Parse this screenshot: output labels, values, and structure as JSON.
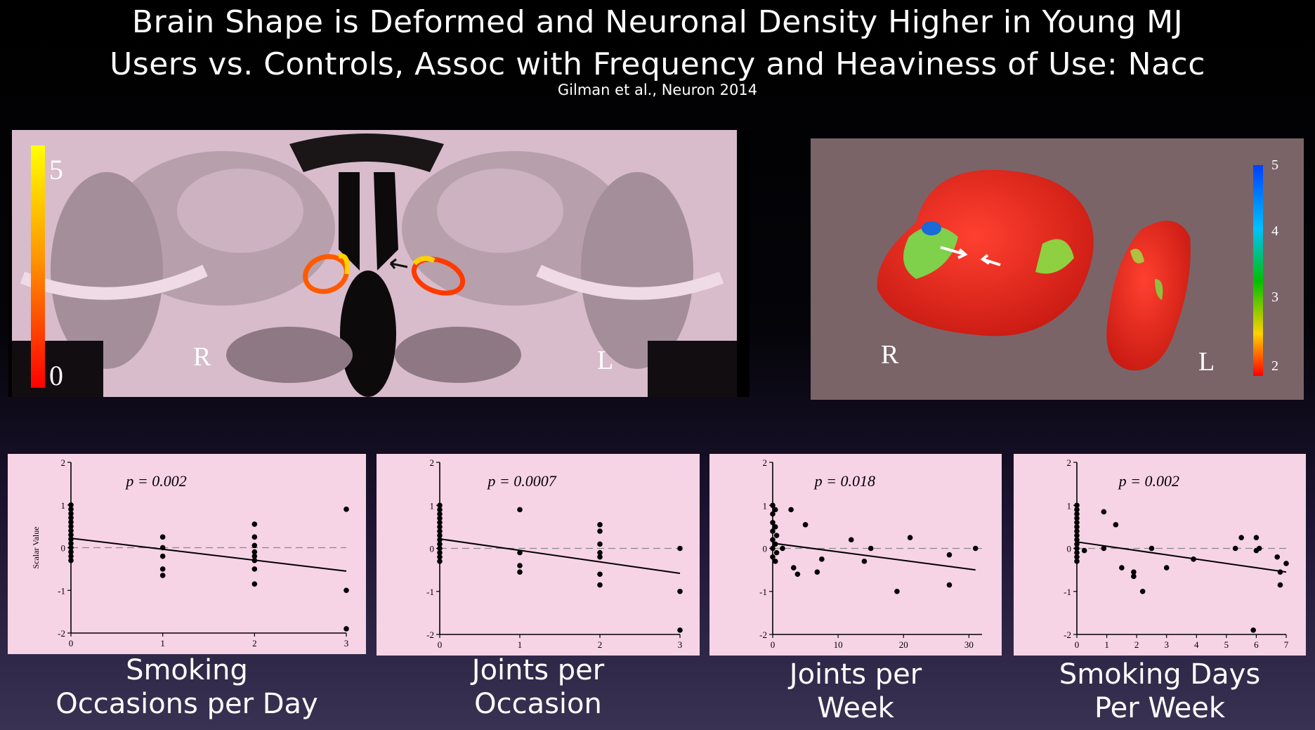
{
  "slide": {
    "title_line1": "Brain Shape is Deformed and Neuronal Density Higher in Young MJ",
    "title_line2": "Users vs. Controls, Assoc with Frequency and Heaviness of Use: Nacc",
    "citation": "Gilman et al., Neuron 2014"
  },
  "brain_left": {
    "colorbar_max": "5",
    "colorbar_min": "0",
    "label_right": "R",
    "label_left": "L",
    "colorbar_colors": [
      "#ffff00",
      "#ff8000",
      "#ff0000"
    ]
  },
  "brain_right": {
    "colorbar_ticks": [
      "5",
      "4",
      "3",
      "2"
    ],
    "label_right": "R",
    "label_left": "L",
    "surface_color": "#e8231c",
    "background": "#7a6468"
  },
  "chart_data": [
    {
      "type": "scatter",
      "caption_line1": "Smoking",
      "caption_line2": "Occasions per Day",
      "ylabel": "Scalar Value",
      "annotation": "p = 0.002",
      "xlim": [
        0,
        3
      ],
      "ylim": [
        -2,
        2
      ],
      "xticks": [
        "0",
        "1",
        "2",
        "3"
      ],
      "yticks": [
        "2",
        "1",
        "0",
        "-1",
        "-2"
      ],
      "points": [
        [
          0,
          1.0
        ],
        [
          0,
          0.9
        ],
        [
          0,
          0.8
        ],
        [
          0,
          0.7
        ],
        [
          0,
          0.6
        ],
        [
          0,
          0.5
        ],
        [
          0,
          0.4
        ],
        [
          0,
          0.3
        ],
        [
          0,
          0.2
        ],
        [
          0,
          0.1
        ],
        [
          0,
          0.0
        ],
        [
          0,
          -0.1
        ],
        [
          0,
          -0.2
        ],
        [
          0,
          -0.3
        ],
        [
          1,
          0.25
        ],
        [
          1,
          0.0
        ],
        [
          1,
          -0.2
        ],
        [
          1,
          -0.5
        ],
        [
          1,
          -0.65
        ],
        [
          2,
          0.55
        ],
        [
          2,
          0.25
        ],
        [
          2,
          0.05
        ],
        [
          2,
          -0.1
        ],
        [
          2,
          -0.2
        ],
        [
          2,
          -0.3
        ],
        [
          2,
          -0.5
        ],
        [
          2,
          -0.85
        ],
        [
          3,
          0.9
        ],
        [
          3,
          -1.0
        ],
        [
          3,
          -1.9
        ]
      ],
      "fit": [
        [
          0,
          0.22
        ],
        [
          3,
          -0.55
        ]
      ]
    },
    {
      "type": "scatter",
      "caption_line1": "Joints per",
      "caption_line2": "Occasion",
      "annotation": "p = 0.0007",
      "xlim": [
        0,
        3
      ],
      "ylim": [
        -2,
        2
      ],
      "xticks": [
        "0",
        "1",
        "2",
        "3"
      ],
      "yticks": [
        "2",
        "1",
        "0",
        "-1",
        "-2"
      ],
      "points": [
        [
          0,
          1.0
        ],
        [
          0,
          0.9
        ],
        [
          0,
          0.8
        ],
        [
          0,
          0.7
        ],
        [
          0,
          0.6
        ],
        [
          0,
          0.5
        ],
        [
          0,
          0.4
        ],
        [
          0,
          0.3
        ],
        [
          0,
          0.2
        ],
        [
          0,
          0.1
        ],
        [
          0,
          0.0
        ],
        [
          0,
          -0.1
        ],
        [
          0,
          -0.2
        ],
        [
          0,
          -0.3
        ],
        [
          1,
          0.9
        ],
        [
          1,
          -0.1
        ],
        [
          1,
          -0.4
        ],
        [
          1,
          -0.55
        ],
        [
          2,
          0.55
        ],
        [
          2,
          0.4
        ],
        [
          2,
          0.1
        ],
        [
          2,
          -0.1
        ],
        [
          2,
          -0.2
        ],
        [
          2,
          -0.6
        ],
        [
          2,
          -0.85
        ],
        [
          3,
          0.0
        ],
        [
          3,
          -1.0
        ],
        [
          3,
          -1.9
        ]
      ],
      "fit": [
        [
          0,
          0.22
        ],
        [
          3,
          -0.58
        ]
      ]
    },
    {
      "type": "scatter",
      "caption_line1": "Joints per",
      "caption_line2": "Week",
      "annotation": "p = 0.018",
      "xlim": [
        0,
        32
      ],
      "ylim": [
        -2,
        2
      ],
      "xticks": [
        "0",
        "10",
        "20",
        "30"
      ],
      "xtick_values": [
        0,
        10,
        20,
        30
      ],
      "yticks": [
        "2",
        "1",
        "0",
        "-1",
        "-2"
      ],
      "points": [
        [
          0,
          1.0
        ],
        [
          0,
          0.8
        ],
        [
          0,
          0.6
        ],
        [
          0,
          0.4
        ],
        [
          0,
          0.2
        ],
        [
          0,
          0.0
        ],
        [
          0,
          -0.2
        ],
        [
          0.4,
          0.9
        ],
        [
          0.4,
          0.5
        ],
        [
          0.4,
          0.1
        ],
        [
          0.4,
          -0.3
        ],
        [
          0.6,
          0.3
        ],
        [
          0.6,
          -0.1
        ],
        [
          1.5,
          0.0
        ],
        [
          2.8,
          0.9
        ],
        [
          3.2,
          -0.45
        ],
        [
          3.8,
          -0.6
        ],
        [
          5,
          0.55
        ],
        [
          6.8,
          -0.55
        ],
        [
          7.5,
          -0.25
        ],
        [
          12,
          0.2
        ],
        [
          14,
          -0.3
        ],
        [
          15,
          0.0
        ],
        [
          19,
          -1.0
        ],
        [
          21,
          0.25
        ],
        [
          27,
          -0.15
        ],
        [
          27,
          -0.85
        ],
        [
          31,
          0.0
        ]
      ],
      "fit": [
        [
          0,
          0.12
        ],
        [
          31,
          -0.5
        ]
      ]
    },
    {
      "type": "scatter",
      "caption_line1": "Smoking Days",
      "caption_line2": "Per Week",
      "annotation": "p = 0.002",
      "xlim": [
        0,
        7
      ],
      "ylim": [
        -2,
        2
      ],
      "xticks": [
        "0",
        "1",
        "2",
        "3",
        "4",
        "5",
        "6",
        "7"
      ],
      "yticks": [
        "2",
        "1",
        "0",
        "-1",
        "-2"
      ],
      "points": [
        [
          0,
          1.0
        ],
        [
          0,
          0.9
        ],
        [
          0,
          0.8
        ],
        [
          0,
          0.7
        ],
        [
          0,
          0.6
        ],
        [
          0,
          0.5
        ],
        [
          0,
          0.4
        ],
        [
          0,
          0.3
        ],
        [
          0,
          0.2
        ],
        [
          0,
          0.1
        ],
        [
          0,
          0.0
        ],
        [
          0,
          -0.1
        ],
        [
          0,
          -0.2
        ],
        [
          0,
          -0.3
        ],
        [
          0.25,
          -0.05
        ],
        [
          0.9,
          0.85
        ],
        [
          0.9,
          0.0
        ],
        [
          1.3,
          0.55
        ],
        [
          1.5,
          -0.45
        ],
        [
          1.9,
          -0.55
        ],
        [
          1.9,
          -0.65
        ],
        [
          2.2,
          -1.0
        ],
        [
          2.5,
          0.0
        ],
        [
          3.0,
          -0.45
        ],
        [
          3.9,
          -0.25
        ],
        [
          5.3,
          0.0
        ],
        [
          5.5,
          0.25
        ],
        [
          5.9,
          -1.9
        ],
        [
          6.0,
          0.25
        ],
        [
          6.0,
          -0.05
        ],
        [
          6.1,
          0.0
        ],
        [
          6.7,
          -0.2
        ],
        [
          6.8,
          -0.55
        ],
        [
          6.8,
          -0.85
        ],
        [
          7.0,
          -0.35
        ]
      ],
      "fit": [
        [
          0,
          0.15
        ],
        [
          7,
          -0.55
        ]
      ]
    }
  ]
}
